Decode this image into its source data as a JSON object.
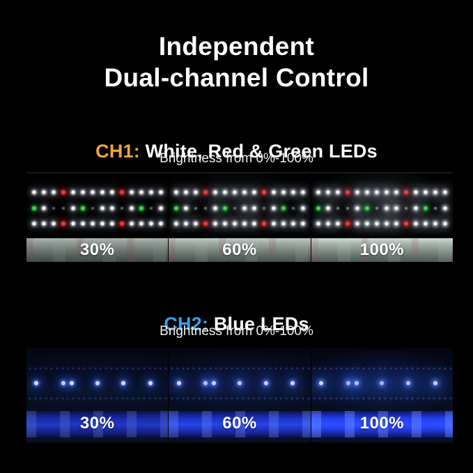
{
  "title": {
    "line1": "Independent",
    "line2": "Dual-channel Control"
  },
  "channels": [
    {
      "id": "ch1",
      "label": "CH1:",
      "heading": "White, Red & Green LEDs",
      "subtitle": "Brightness from 0%-100%",
      "accent_color": "#f2a43b",
      "led_colors": {
        "white": "#ffffff",
        "red": "#ff3038",
        "green": "#39df51"
      },
      "segments": [
        {
          "label": "30%",
          "intensity": 0.72
        },
        {
          "label": "60%",
          "intensity": 0.88
        },
        {
          "label": "100%",
          "intensity": 1.0
        }
      ],
      "led_rows": [
        {
          "pattern": "WWWRWWWWWRWWWW",
          "y": 29
        },
        {
          "pattern": "GWwwWGwWWwWGwW",
          "y": 54
        },
        {
          "pattern": "WWWRWWWWWRWWWW",
          "y": 77
        }
      ]
    },
    {
      "id": "ch2",
      "label": "CH2:",
      "heading": "Blue LEDs",
      "subtitle": "Brightness from 0%-100%",
      "accent_color": "#38a1e8",
      "led_colors": {
        "blue": "#4a7bff"
      },
      "segments": [
        {
          "label": "30%",
          "intensity": 0.7
        },
        {
          "label": "60%",
          "intensity": 0.9
        },
        {
          "label": "100%",
          "intensity": 1.15
        }
      ],
      "main_row": {
        "y": 56,
        "positions": [
          0.07,
          0.26,
          0.32,
          0.5,
          0.685,
          0.875
        ]
      },
      "faint_rows": [
        {
          "y": 32,
          "count": 26
        },
        {
          "y": 80,
          "count": 26
        }
      ]
    }
  ]
}
